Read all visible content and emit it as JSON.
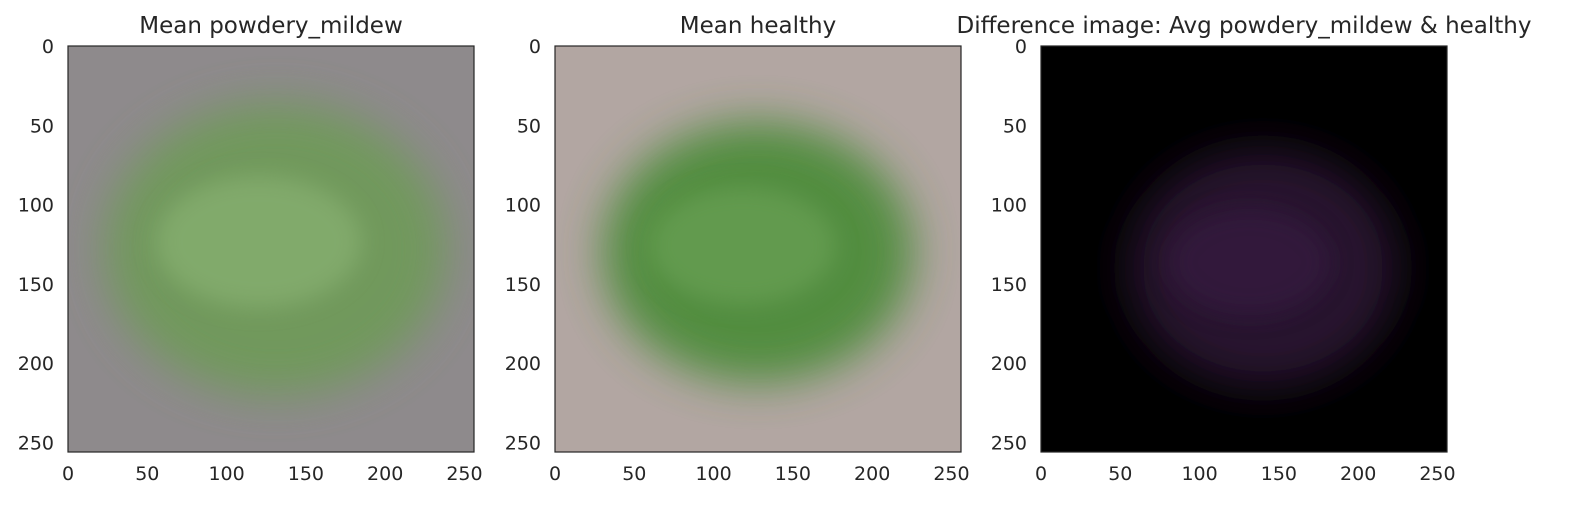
{
  "chart_data": [
    {
      "type": "heatmap",
      "title": "Mean powdery_mildew",
      "xlabel": "",
      "ylabel": "",
      "xlim": [
        0,
        256
      ],
      "ylim": [
        256,
        0
      ],
      "x_ticks": [
        0,
        50,
        100,
        150,
        200,
        250
      ],
      "y_ticks": [
        0,
        50,
        100,
        150,
        200,
        250
      ],
      "grid": false,
      "image": {
        "background": "#8e8a8c",
        "object": "leaf",
        "object_color": "#6f9a5a",
        "object_highlight": "#8fb878",
        "object_center": [
          131,
          128
        ],
        "object_radii": [
          108,
          92
        ]
      }
    },
    {
      "type": "heatmap",
      "title": "Mean healthy",
      "xlabel": "",
      "ylabel": "",
      "xlim": [
        0,
        256
      ],
      "ylim": [
        256,
        0
      ],
      "x_ticks": [
        0,
        50,
        100,
        150,
        200,
        250
      ],
      "y_ticks": [
        0,
        50,
        100,
        150,
        200,
        250
      ],
      "grid": false,
      "image": {
        "background": "#b2a6a2",
        "object": "leaf",
        "object_color": "#4e8c3a",
        "object_highlight": "#6fa55a",
        "object_center": [
          128,
          130
        ],
        "object_radii": [
          98,
          82
        ]
      }
    },
    {
      "type": "heatmap",
      "title": "Difference image: Avg powdery_mildew & healthy",
      "xlabel": "",
      "ylabel": "",
      "xlim": [
        0,
        256
      ],
      "ylim": [
        256,
        0
      ],
      "x_ticks": [
        0,
        50,
        100,
        150,
        200,
        250
      ],
      "y_ticks": [
        0,
        50,
        100,
        150,
        200,
        250
      ],
      "grid": false,
      "image": {
        "background": "#000000",
        "object": "leaf",
        "object_color": "#2a1530",
        "object_highlight": "#3a1f44",
        "object_center": [
          140,
          140
        ],
        "object_radii": [
          85,
          75
        ]
      }
    }
  ]
}
